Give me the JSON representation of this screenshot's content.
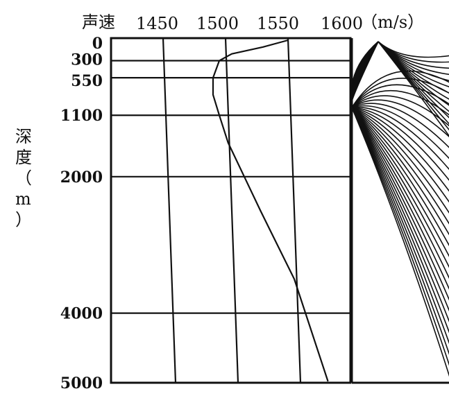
{
  "chart_data": [
    {
      "type": "line",
      "title": "",
      "xlabel": "声速",
      "x_unit": "（m/s）",
      "ylabel": "深度（m）",
      "x_ticks": [
        "1450",
        "1500",
        "1550",
        "1600"
      ],
      "y_ticks": [
        "0",
        "300",
        "550",
        "1100",
        "2000",
        "4000",
        "5000"
      ],
      "xlim": [
        1400,
        1600
      ],
      "ylim": [
        0,
        5000
      ],
      "y_inverted": true,
      "grid": true,
      "series": [
        {
          "x": [
            1550,
            1530,
            1505,
            1495,
            1490,
            1490,
            1495,
            1502,
            1515,
            1528,
            1555,
            1582
          ],
          "y": [
            0,
            100,
            200,
            300,
            550,
            800,
            1100,
            1500,
            2000,
            2500,
            3500,
            5000
          ]
        }
      ]
    },
    {
      "type": "line",
      "description_only": false,
      "series_count": 28
    }
  ],
  "colors": {
    "ink": "#111111",
    "paper": "#ffffff"
  }
}
